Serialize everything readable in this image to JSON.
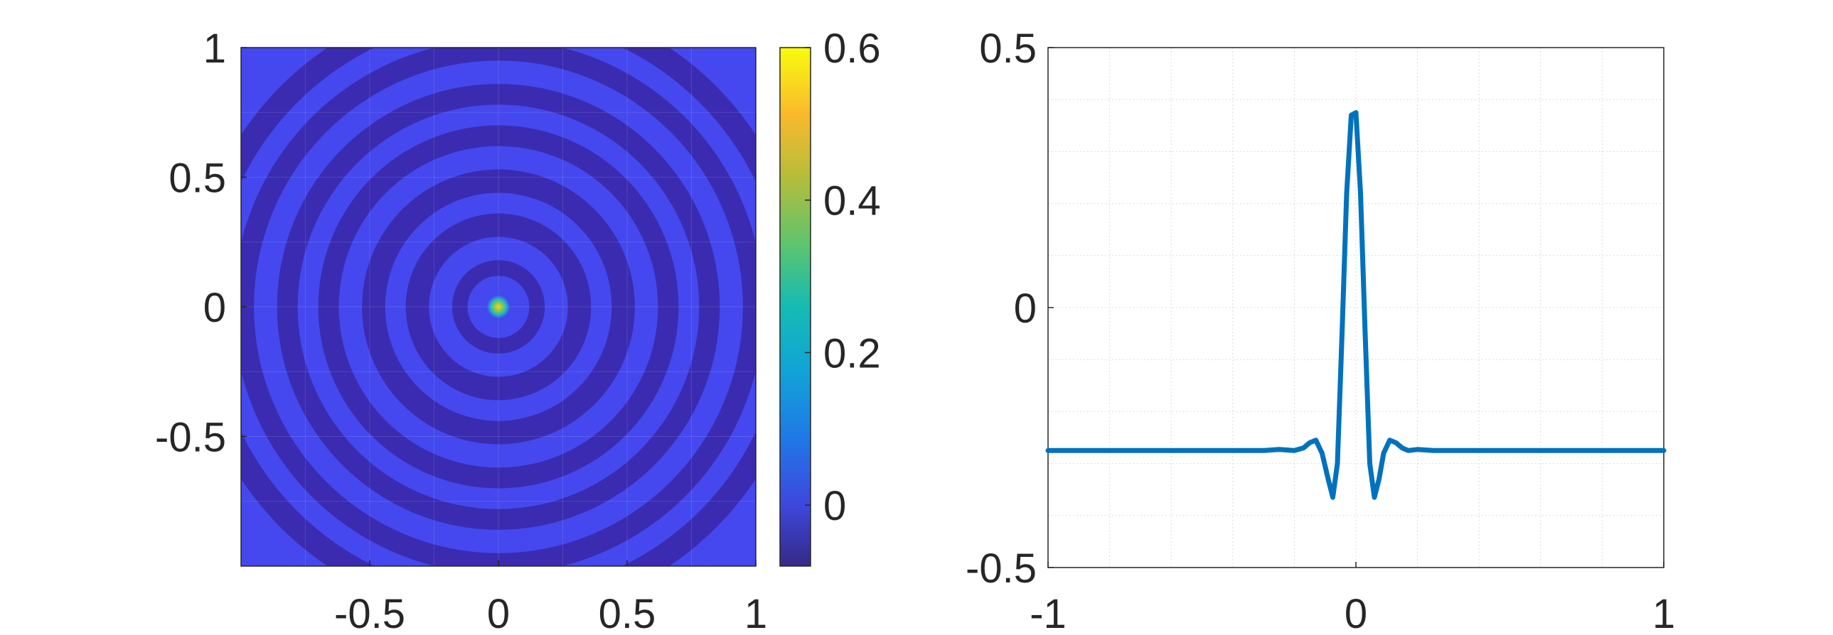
{
  "chart_data": [
    {
      "type": "heatmap",
      "title": "",
      "xlabel": "",
      "ylabel": "",
      "xlim": [
        -1,
        1
      ],
      "ylim": [
        -1,
        1
      ],
      "x_ticks": [
        {
          "value": -0.5,
          "label": "-0.5"
        },
        {
          "value": 0,
          "label": "0"
        },
        {
          "value": 0.5,
          "label": "0.5"
        },
        {
          "value": 1,
          "label": "1"
        }
      ],
      "y_ticks": [
        {
          "value": 1,
          "label": "1"
        },
        {
          "value": 0.5,
          "label": "0.5"
        },
        {
          "value": 0,
          "label": "0"
        },
        {
          "value": -0.5,
          "label": "-0.5"
        }
      ],
      "grid": true,
      "colormap": "parula",
      "colorbar": {
        "clim": [
          -0.08,
          0.6
        ],
        "ticks": [
          {
            "value": 0,
            "label": "0"
          },
          {
            "value": 0.2,
            "label": "0.2"
          },
          {
            "value": 0.4,
            "label": "0.4"
          },
          {
            "value": 0.6,
            "label": "0.6"
          }
        ]
      },
      "description_values": {
        "peak_value": 0.6,
        "ring_high_value": 0.0,
        "ring_low_value": -0.07,
        "ring_boundaries_radius": [
          0.05,
          0.12,
          0.18,
          0.27,
          0.36,
          0.44,
          0.53,
          0.62,
          0.7,
          0.78,
          0.86,
          0.95,
          1.03,
          1.11,
          1.2,
          1.28
        ]
      },
      "colors": {
        "ring_high": "#4448ee",
        "ring_low": "#3a2bb0",
        "peak": "#f5d21e"
      }
    },
    {
      "type": "line",
      "title": "",
      "xlabel": "",
      "ylabel": "",
      "xlim": [
        -1,
        1
      ],
      "ylim": [
        -0.5,
        0.5
      ],
      "x_ticks": [
        {
          "value": -1,
          "label": "-1"
        },
        {
          "value": 0,
          "label": "0"
        },
        {
          "value": 1,
          "label": "1"
        }
      ],
      "y_ticks": [
        {
          "value": 0.5,
          "label": "0.5"
        },
        {
          "value": 0,
          "label": "0"
        },
        {
          "value": -0.5,
          "label": "-0.5"
        }
      ],
      "grid": true,
      "series": [
        {
          "color": "#0072bd",
          "x": [
            -1,
            -0.5,
            -0.3,
            -0.25,
            -0.2,
            -0.17,
            -0.15,
            -0.13,
            -0.11,
            -0.09,
            -0.075,
            -0.06,
            -0.045,
            -0.03,
            -0.015,
            0,
            0.015,
            0.03,
            0.045,
            0.06,
            0.075,
            0.09,
            0.11,
            0.13,
            0.15,
            0.17,
            0.2,
            0.25,
            0.3,
            0.5,
            1
          ],
          "y": [
            -0.275,
            -0.275,
            -0.275,
            -0.273,
            -0.275,
            -0.27,
            -0.26,
            -0.255,
            -0.28,
            -0.33,
            -0.365,
            -0.3,
            -0.05,
            0.22,
            0.37,
            0.375,
            0.22,
            -0.05,
            -0.3,
            -0.365,
            -0.33,
            -0.28,
            -0.255,
            -0.26,
            -0.27,
            -0.275,
            -0.273,
            -0.275,
            -0.275,
            -0.275,
            -0.275
          ]
        }
      ]
    }
  ]
}
